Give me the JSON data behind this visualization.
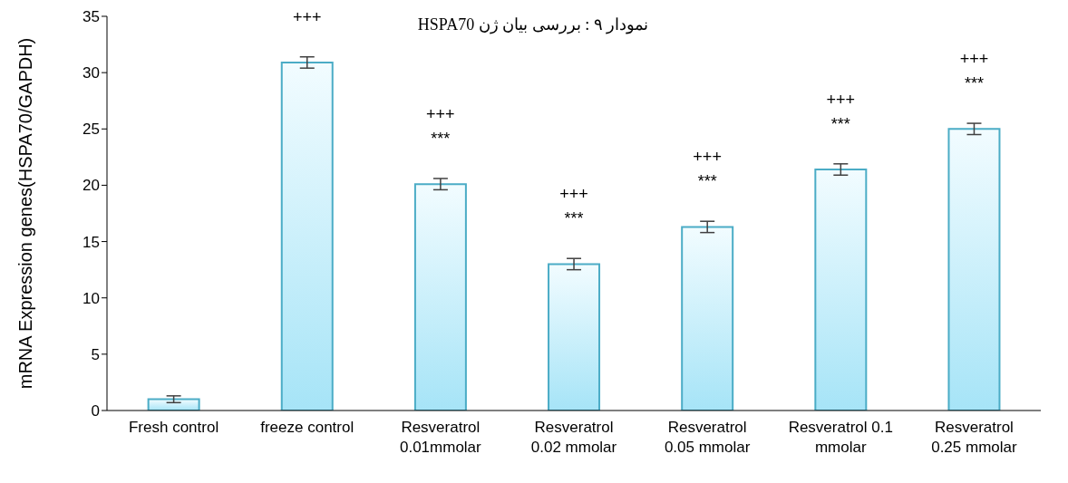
{
  "chart_data": {
    "type": "bar",
    "title": "نمودار ۹ : بررسی بیان ژن HSPA70",
    "ylabel": "mRNA Expression genes(HSPA70/GAPDH)",
    "categories": [
      "Fresh control",
      "freeze control",
      "Resveratrol\n0.01mmolar",
      "Resveratrol\n0.02 mmolar",
      "Resveratrol\n0.05 mmolar",
      "Resveratrol 0.1\nmmolar",
      "Resveratrol\n0.25 mmolar"
    ],
    "values": [
      1.0,
      30.9,
      20.1,
      13.0,
      16.3,
      21.4,
      25.0
    ],
    "errors": [
      0.3,
      0.5,
      0.5,
      0.5,
      0.5,
      0.5,
      0.5
    ],
    "color": "#4bacc6",
    "ylim": [
      0,
      35
    ],
    "yticks": [
      0,
      5,
      10,
      15,
      20,
      25,
      30,
      35
    ],
    "grid": false,
    "legend": false,
    "annotations": [
      {
        "text": "+++",
        "x": "freeze control",
        "y": 30.9
      },
      {
        "text": "+++\n***",
        "x": "Resveratrol\n0.01mmolar",
        "y": 20.1
      },
      {
        "text": "+++\n***",
        "x": "Resveratrol\n0.02 mmolar",
        "y": 13.0
      },
      {
        "text": "+++\n***",
        "x": "Resveratrol\n0.05 mmolar",
        "y": 16.3
      },
      {
        "text": "+++\n***",
        "x": "Resveratrol 0.1\nmmolar",
        "y": 21.4
      },
      {
        "text": "+++\n***",
        "x": "Resveratrol\n0.25 mmolar",
        "y": 25.0
      }
    ]
  }
}
